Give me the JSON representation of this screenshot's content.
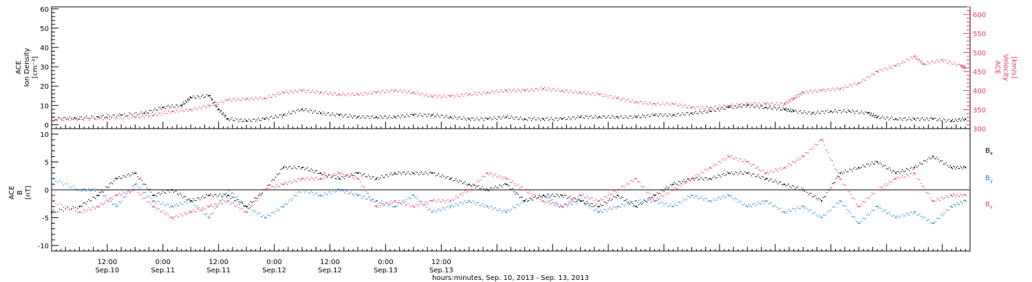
{
  "chart_data": [
    {
      "type": "scatter",
      "panel": "top",
      "ylabel_left": [
        "ACE",
        "Ion Density",
        "[cm⁻³]"
      ],
      "ylabel_right": [
        "ACE",
        "Velocity",
        "[km/s]"
      ],
      "ylim_left": [
        -2,
        61
      ],
      "ylim_right": [
        300,
        620
      ],
      "yticks_left": [
        0,
        10,
        20,
        30,
        40,
        50,
        60
      ],
      "yticks_right": [
        300,
        350,
        400,
        450,
        500,
        550,
        600
      ],
      "colors": {
        "density": "#000000",
        "velocity": "#e8396a"
      },
      "series": [
        {
          "axis": "left",
          "color": "#000000",
          "points": [
            [
              0,
              3
            ],
            [
              5,
              3.5
            ],
            [
              10,
              4
            ],
            [
              15,
              5
            ],
            [
              20,
              6
            ],
            [
              24,
              9
            ],
            [
              28,
              10
            ],
            [
              30,
              14
            ],
            [
              34,
              15
            ],
            [
              36,
              8
            ],
            [
              38,
              3
            ],
            [
              42,
              2
            ],
            [
              46,
              3
            ],
            [
              50,
              5
            ],
            [
              54,
              8
            ],
            [
              58,
              6
            ],
            [
              62,
              5
            ],
            [
              66,
              4
            ],
            [
              70,
              4
            ],
            [
              74,
              4
            ],
            [
              78,
              5
            ],
            [
              82,
              5
            ],
            [
              86,
              4
            ],
            [
              90,
              3
            ],
            [
              94,
              3
            ],
            [
              98,
              4
            ],
            [
              102,
              3
            ],
            [
              106,
              3
            ],
            [
              110,
              3
            ],
            [
              114,
              4
            ],
            [
              118,
              4
            ],
            [
              122,
              4
            ],
            [
              126,
              4
            ],
            [
              130,
              5
            ],
            [
              134,
              5
            ],
            [
              138,
              6
            ],
            [
              142,
              7
            ],
            [
              146,
              9
            ],
            [
              150,
              10
            ],
            [
              154,
              9
            ],
            [
              158,
              8
            ],
            [
              160,
              7
            ],
            [
              164,
              6
            ],
            [
              168,
              7
            ],
            [
              172,
              7
            ],
            [
              176,
              6
            ],
            [
              178,
              4
            ],
            [
              182,
              3
            ],
            [
              186,
              3
            ],
            [
              190,
              3
            ],
            [
              194,
              2
            ],
            [
              197,
              3
            ]
          ]
        },
        {
          "axis": "right",
          "color": "#e8396a",
          "points": [
            [
              0,
              325
            ],
            [
              6,
              325
            ],
            [
              12,
              328
            ],
            [
              18,
              330
            ],
            [
              22,
              335
            ],
            [
              26,
              345
            ],
            [
              30,
              350
            ],
            [
              34,
              360
            ],
            [
              38,
              375
            ],
            [
              42,
              378
            ],
            [
              46,
              380
            ],
            [
              50,
              395
            ],
            [
              54,
              400
            ],
            [
              58,
              395
            ],
            [
              62,
              390
            ],
            [
              66,
              390
            ],
            [
              70,
              395
            ],
            [
              74,
              400
            ],
            [
              78,
              395
            ],
            [
              82,
              385
            ],
            [
              86,
              385
            ],
            [
              90,
              390
            ],
            [
              94,
              395
            ],
            [
              98,
              400
            ],
            [
              102,
              400
            ],
            [
              106,
              405
            ],
            [
              110,
              400
            ],
            [
              114,
              395
            ],
            [
              118,
              390
            ],
            [
              122,
              380
            ],
            [
              126,
              370
            ],
            [
              130,
              365
            ],
            [
              134,
              365
            ],
            [
              138,
              355
            ],
            [
              142,
              355
            ],
            [
              146,
              360
            ],
            [
              150,
              365
            ],
            [
              154,
              365
            ],
            [
              158,
              365
            ],
            [
              160,
              380
            ],
            [
              162,
              395
            ],
            [
              166,
              400
            ],
            [
              170,
              405
            ],
            [
              174,
              420
            ],
            [
              178,
              450
            ],
            [
              182,
              465
            ],
            [
              186,
              490
            ],
            [
              188,
              470
            ],
            [
              192,
              480
            ],
            [
              196,
              465
            ],
            [
              197,
              460
            ]
          ]
        }
      ]
    },
    {
      "type": "scatter",
      "panel": "bottom",
      "ylabel_left": [
        "ACE",
        "B",
        "[nT]"
      ],
      "ylim": [
        -11,
        11
      ],
      "yticks": [
        -10,
        -5,
        0,
        5,
        10
      ],
      "legend": [
        "B",
        "B",
        "B"
      ],
      "legend_sub": [
        "x",
        "y",
        "z"
      ],
      "colors": {
        "bx": "#000000",
        "by": "#1a82d6",
        "bz": "#e8396a"
      },
      "series": [
        {
          "color": "#000000",
          "points": [
            [
              0,
              -4
            ],
            [
              6,
              -3
            ],
            [
              10,
              -1
            ],
            [
              14,
              2
            ],
            [
              18,
              3
            ],
            [
              22,
              -1
            ],
            [
              26,
              0
            ],
            [
              30,
              -2
            ],
            [
              34,
              -1
            ],
            [
              38,
              -1
            ],
            [
              42,
              -3
            ],
            [
              46,
              0
            ],
            [
              50,
              4
            ],
            [
              54,
              4
            ],
            [
              58,
              3
            ],
            [
              62,
              2
            ],
            [
              66,
              3
            ],
            [
              70,
              2
            ],
            [
              74,
              3
            ],
            [
              78,
              3
            ],
            [
              82,
              3
            ],
            [
              86,
              2
            ],
            [
              90,
              1
            ],
            [
              94,
              0
            ],
            [
              98,
              1
            ],
            [
              102,
              -2
            ],
            [
              106,
              -1
            ],
            [
              110,
              -1
            ],
            [
              114,
              -2
            ],
            [
              118,
              -3
            ],
            [
              122,
              -1
            ],
            [
              126,
              -3
            ],
            [
              130,
              -1
            ],
            [
              134,
              1
            ],
            [
              138,
              2
            ],
            [
              142,
              2
            ],
            [
              146,
              3
            ],
            [
              150,
              3
            ],
            [
              154,
              2
            ],
            [
              158,
              1
            ],
            [
              162,
              0
            ],
            [
              166,
              -2
            ],
            [
              170,
              3
            ],
            [
              174,
              4
            ],
            [
              178,
              5
            ],
            [
              182,
              3
            ],
            [
              186,
              4
            ],
            [
              190,
              6
            ],
            [
              194,
              4
            ],
            [
              197,
              4
            ]
          ]
        },
        {
          "color": "#1a82d6",
          "points": [
            [
              0,
              2
            ],
            [
              6,
              0
            ],
            [
              10,
              0
            ],
            [
              14,
              -3
            ],
            [
              18,
              1
            ],
            [
              22,
              -2
            ],
            [
              26,
              -3
            ],
            [
              30,
              -2
            ],
            [
              34,
              -5
            ],
            [
              38,
              0
            ],
            [
              42,
              -3
            ],
            [
              46,
              -5
            ],
            [
              50,
              -3
            ],
            [
              54,
              0
            ],
            [
              58,
              -1
            ],
            [
              62,
              0
            ],
            [
              66,
              -1
            ],
            [
              70,
              -2
            ],
            [
              74,
              -3
            ],
            [
              78,
              -1
            ],
            [
              82,
              -4
            ],
            [
              86,
              -3
            ],
            [
              90,
              -2
            ],
            [
              94,
              -3
            ],
            [
              98,
              -4
            ],
            [
              102,
              -2
            ],
            [
              106,
              -1
            ],
            [
              110,
              -3
            ],
            [
              114,
              -2
            ],
            [
              118,
              -4
            ],
            [
              122,
              -3
            ],
            [
              126,
              -2
            ],
            [
              130,
              -2
            ],
            [
              134,
              -3
            ],
            [
              138,
              -1
            ],
            [
              142,
              -2
            ],
            [
              146,
              -1
            ],
            [
              150,
              -3
            ],
            [
              154,
              -2
            ],
            [
              158,
              -4
            ],
            [
              162,
              -3
            ],
            [
              166,
              -5
            ],
            [
              170,
              -2
            ],
            [
              174,
              -6
            ],
            [
              178,
              -3
            ],
            [
              182,
              -5
            ],
            [
              186,
              -4
            ],
            [
              190,
              -6
            ],
            [
              194,
              -3
            ],
            [
              197,
              -2
            ]
          ]
        },
        {
          "color": "#e8396a",
          "points": [
            [
              0,
              -2
            ],
            [
              6,
              -4
            ],
            [
              10,
              -3
            ],
            [
              14,
              -1
            ],
            [
              18,
              0
            ],
            [
              22,
              -3
            ],
            [
              26,
              -5
            ],
            [
              30,
              -4
            ],
            [
              34,
              -3
            ],
            [
              38,
              -2
            ],
            [
              42,
              -4
            ],
            [
              46,
              0
            ],
            [
              50,
              1
            ],
            [
              54,
              2
            ],
            [
              58,
              2
            ],
            [
              62,
              3
            ],
            [
              66,
              2
            ],
            [
              70,
              -3
            ],
            [
              74,
              -2
            ],
            [
              78,
              -3
            ],
            [
              82,
              -2
            ],
            [
              86,
              -2
            ],
            [
              90,
              0
            ],
            [
              94,
              3
            ],
            [
              98,
              2
            ],
            [
              102,
              0
            ],
            [
              106,
              -2
            ],
            [
              110,
              -3
            ],
            [
              114,
              -1
            ],
            [
              118,
              -2
            ],
            [
              122,
              0
            ],
            [
              126,
              2
            ],
            [
              130,
              -2
            ],
            [
              134,
              0
            ],
            [
              138,
              2
            ],
            [
              142,
              4
            ],
            [
              146,
              6
            ],
            [
              150,
              5
            ],
            [
              154,
              3
            ],
            [
              158,
              4
            ],
            [
              162,
              6
            ],
            [
              166,
              9
            ],
            [
              170,
              2
            ],
            [
              174,
              -3
            ],
            [
              178,
              0
            ],
            [
              182,
              2
            ],
            [
              186,
              3
            ],
            [
              190,
              -2
            ],
            [
              194,
              -1
            ],
            [
              197,
              -1
            ]
          ]
        }
      ]
    }
  ],
  "xaxis": {
    "range_hours": [
      0,
      198
    ],
    "ticks": [
      {
        "h": 12,
        "time": "12:00",
        "date": "Sep.10"
      },
      {
        "h": 24,
        "time": "0:00",
        "date": "Sep.11"
      },
      {
        "h": 36,
        "time": "12:00",
        "date": "Sep.11"
      },
      {
        "h": 48,
        "time": "0:00",
        "date": "Sep.12"
      },
      {
        "h": 60,
        "time": "12:00",
        "date": "Sep.12"
      },
      {
        "h": 72,
        "time": "0:00",
        "date": "Sep.13"
      },
      {
        "h": 84,
        "time": "12:00",
        "date": "Sep.13"
      }
    ],
    "label": "hours:minutes, Sep. 10, 2013 - Sep. 13, 2013"
  }
}
